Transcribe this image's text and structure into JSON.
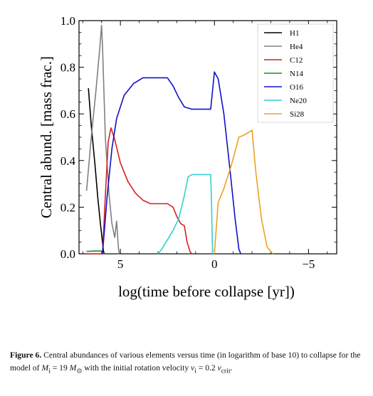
{
  "chart_data": {
    "type": "line",
    "xlabel": "log(time before collapse [yr])",
    "ylabel": "Central abund. [mass frac.]",
    "xlim": [
      7.2,
      -6.5
    ],
    "ylim": [
      0.0,
      1.0
    ],
    "x_ticks": [
      5,
      0,
      -5
    ],
    "x_tick_labels": [
      "5",
      "0",
      "−5"
    ],
    "y_ticks": [
      0.0,
      0.2,
      0.4,
      0.6,
      0.8,
      1.0
    ],
    "y_tick_labels": [
      "0.0",
      "0.2",
      "0.4",
      "0.6",
      "0.8",
      "1.0"
    ],
    "legend_placement": "top-right",
    "series": [
      {
        "name": "H1",
        "color": "#000000",
        "points": [
          [
            6.7,
            0.71
          ],
          [
            6.55,
            0.55
          ],
          [
            6.35,
            0.38
          ],
          [
            6.2,
            0.24
          ],
          [
            6.05,
            0.12
          ],
          [
            5.95,
            0.05
          ],
          [
            5.9,
            0.01
          ],
          [
            5.85,
            0.0
          ]
        ]
      },
      {
        "name": "He4",
        "color": "#808080",
        "points": [
          [
            6.8,
            0.27
          ],
          [
            6.55,
            0.5
          ],
          [
            6.3,
            0.7
          ],
          [
            6.1,
            0.88
          ],
          [
            6.0,
            0.98
          ],
          [
            5.95,
            0.89
          ],
          [
            5.8,
            0.5
          ],
          [
            5.6,
            0.25
          ],
          [
            5.45,
            0.13
          ],
          [
            5.3,
            0.07
          ],
          [
            5.2,
            0.14
          ],
          [
            5.1,
            0.02
          ],
          [
            5.05,
            0.0
          ]
        ]
      },
      {
        "name": "C12",
        "color": "#d62020",
        "points": [
          [
            6.8,
            0.0
          ],
          [
            5.95,
            0.0
          ],
          [
            5.8,
            0.25
          ],
          [
            5.65,
            0.48
          ],
          [
            5.5,
            0.54
          ],
          [
            5.3,
            0.49
          ],
          [
            5.0,
            0.39
          ],
          [
            4.6,
            0.31
          ],
          [
            4.2,
            0.26
          ],
          [
            3.8,
            0.23
          ],
          [
            3.4,
            0.215
          ],
          [
            2.5,
            0.215
          ],
          [
            2.2,
            0.2
          ],
          [
            2.0,
            0.16
          ],
          [
            1.8,
            0.13
          ],
          [
            1.6,
            0.12
          ],
          [
            1.45,
            0.05
          ],
          [
            1.3,
            0.01
          ],
          [
            1.2,
            0.0
          ]
        ]
      },
      {
        "name": "N14",
        "color": "#228b22",
        "points": [
          [
            6.8,
            0.01
          ],
          [
            6.4,
            0.012
          ],
          [
            6.0,
            0.012
          ],
          [
            5.85,
            0.0
          ]
        ]
      },
      {
        "name": "O16",
        "color": "#1010c8",
        "points": [
          [
            5.95,
            0.0
          ],
          [
            5.7,
            0.25
          ],
          [
            5.45,
            0.45
          ],
          [
            5.2,
            0.58
          ],
          [
            4.8,
            0.68
          ],
          [
            4.3,
            0.73
          ],
          [
            3.8,
            0.755
          ],
          [
            2.5,
            0.755
          ],
          [
            2.2,
            0.72
          ],
          [
            1.9,
            0.67
          ],
          [
            1.6,
            0.63
          ],
          [
            1.2,
            0.62
          ],
          [
            0.2,
            0.62
          ],
          [
            0.1,
            0.7
          ],
          [
            0.0,
            0.78
          ],
          [
            -0.2,
            0.75
          ],
          [
            -0.5,
            0.6
          ],
          [
            -0.8,
            0.38
          ],
          [
            -1.1,
            0.15
          ],
          [
            -1.3,
            0.02
          ],
          [
            -1.4,
            0.0
          ]
        ]
      },
      {
        "name": "Ne20",
        "color": "#30d0d0",
        "points": [
          [
            3.0,
            0.0
          ],
          [
            2.8,
            0.02
          ],
          [
            2.5,
            0.06
          ],
          [
            2.2,
            0.1
          ],
          [
            1.9,
            0.15
          ],
          [
            1.6,
            0.25
          ],
          [
            1.4,
            0.33
          ],
          [
            1.2,
            0.34
          ],
          [
            0.2,
            0.34
          ],
          [
            0.15,
            0.2
          ],
          [
            0.1,
            0.0
          ]
        ]
      },
      {
        "name": "Si28",
        "color": "#f0a020",
        "points": [
          [
            0.0,
            0.0
          ],
          [
            -0.2,
            0.22
          ],
          [
            -0.5,
            0.28
          ],
          [
            -0.9,
            0.38
          ],
          [
            -1.3,
            0.5
          ],
          [
            -1.6,
            0.51
          ],
          [
            -1.8,
            0.52
          ],
          [
            -2.0,
            0.53
          ],
          [
            -2.2,
            0.35
          ],
          [
            -2.5,
            0.15
          ],
          [
            -2.8,
            0.03
          ],
          [
            -3.1,
            0.0
          ]
        ]
      }
    ]
  },
  "caption": {
    "label": "Figure 6.",
    "line1": "Central abundances of various elements versus time (in logarithm of base 10) to collapse for the model of",
    "mass_symbol": "M",
    "mass_sub": "i",
    "mass_eq": " = 19 ",
    "msun_symbol": "M",
    "msun_sub": "⊙",
    "line2": " with the initial rotation velocity ",
    "v_symbol": "v",
    "v_sub": "i",
    "v_eq": " = 0.2 ",
    "vcrit_symbol": "v",
    "vcrit_sub": "crit",
    "end": "."
  }
}
